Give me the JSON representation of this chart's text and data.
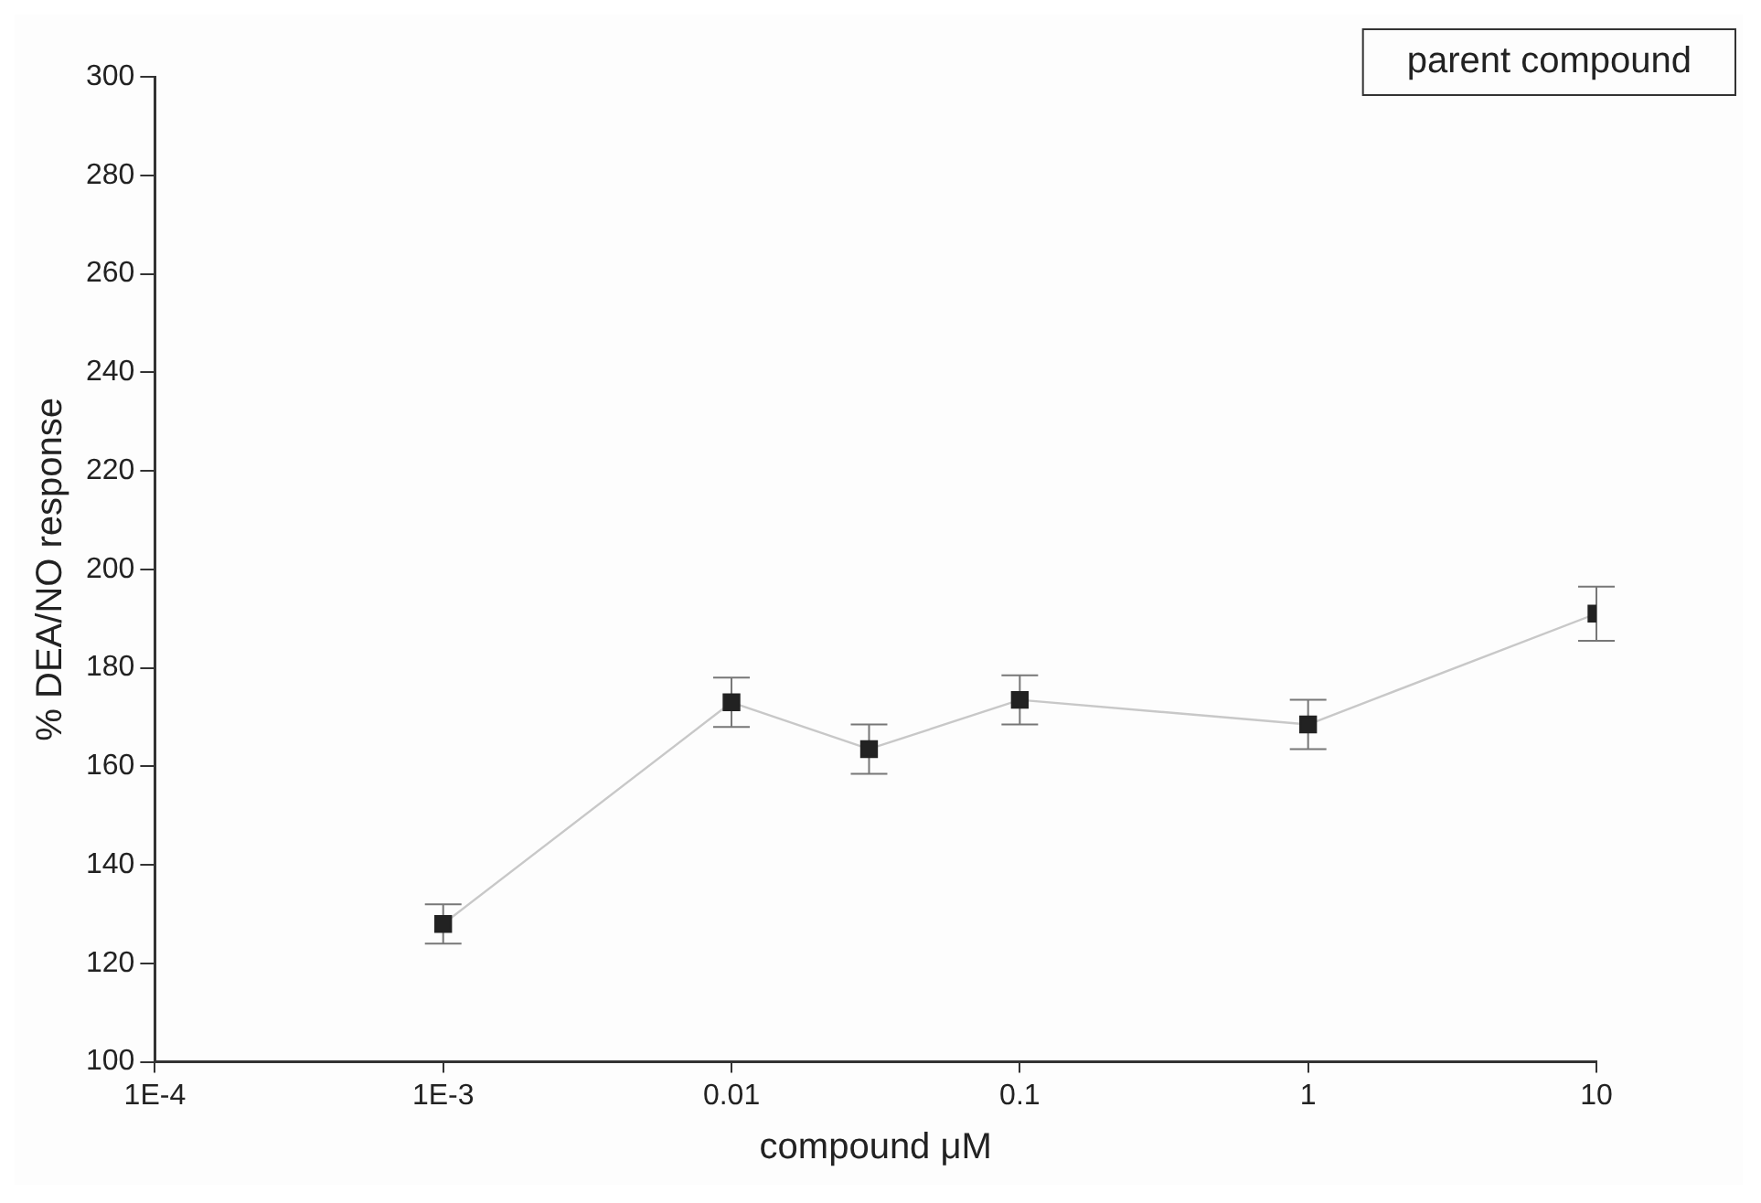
{
  "chart_data": {
    "type": "line",
    "xlabel": "compound μM",
    "ylabel": "% DEA/NO response",
    "annotations": [
      "parent compound"
    ],
    "x": [
      0.001,
      0.01,
      0.03,
      0.1,
      1,
      10
    ],
    "series": [
      {
        "color": "#222222",
        "values": [
          128,
          173,
          163.5,
          173.5,
          168.5,
          191
        ],
        "errors": [
          4,
          5,
          5,
          5,
          5,
          5.5
        ]
      }
    ],
    "log": "x",
    "xlim": [
      0.0001,
      10
    ],
    "xticks": [
      {
        "value": 0.0001,
        "label": "1E-4"
      },
      {
        "value": 0.001,
        "label": "1E-3"
      },
      0.01,
      0.1,
      1,
      10
    ],
    "ylim": [
      100,
      300
    ],
    "yticks": [
      100,
      120,
      140,
      160,
      180,
      200,
      220,
      240,
      260,
      280,
      300
    ],
    "grid": false,
    "legend": false,
    "marker": "square",
    "line_style": "solid"
  }
}
